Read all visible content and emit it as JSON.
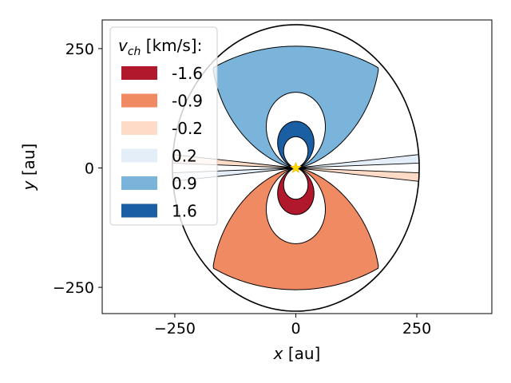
{
  "chart_data": {
    "type": "area",
    "xlabel_var": "x",
    "xlabel_unit": " [au]",
    "ylabel_var": "y",
    "ylabel_unit": " [au]",
    "xlim": [
      -400,
      405
    ],
    "ylim": [
      -305,
      310
    ],
    "xticks": [
      {
        "value": -250,
        "label": "−250"
      },
      {
        "value": 0,
        "label": "0"
      },
      {
        "value": 250,
        "label": "250"
      }
    ],
    "yticks": [
      {
        "value": -250,
        "label": "−250"
      },
      {
        "value": 0,
        "label": "0"
      },
      {
        "value": 250,
        "label": "250"
      }
    ],
    "disk": {
      "radius_x": 255,
      "radius_y": 300
    },
    "star": {
      "x": 0,
      "y": 0,
      "color": "#FFD700"
    },
    "legend": {
      "title_var": "v",
      "title_sub": "ch",
      "title_unit": " [km/s]:",
      "location": "upper-left"
    },
    "series": [
      {
        "name": "-1.6",
        "velocity": -1.6,
        "color": "#b2182b"
      },
      {
        "name": "-0.9",
        "velocity": -0.9,
        "color": "#ef8a62"
      },
      {
        "name": "-0.2",
        "velocity": -0.2,
        "color": "#fddbc7"
      },
      {
        "name": "0.2",
        "velocity": 0.2,
        "color": "#e3eef8"
      },
      {
        "name": "0.9",
        "velocity": 0.9,
        "color": "#7ab4da"
      },
      {
        "name": "1.6",
        "velocity": 1.6,
        "color": "#1a5fa4"
      }
    ]
  }
}
